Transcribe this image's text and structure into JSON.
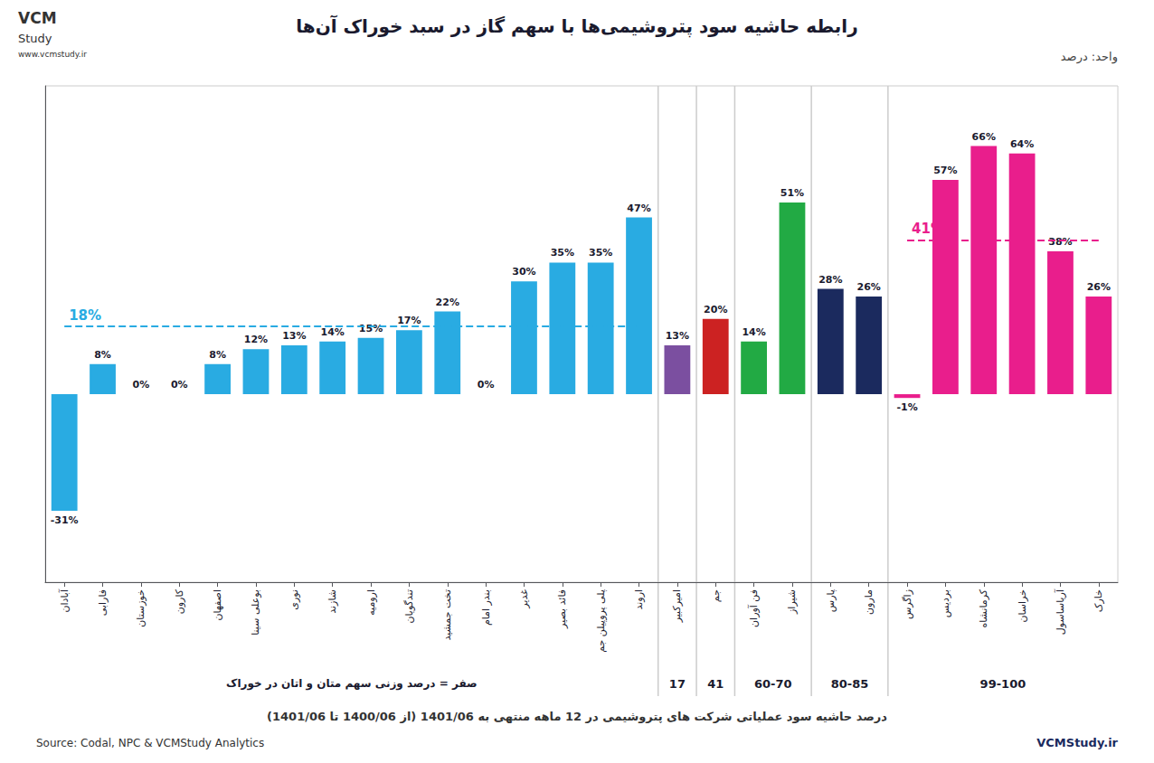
{
  "chart_data": {
    "type": "bar",
    "title": "رابطه حاشیه سود پتروشیمی‌ها با سهم گاز در سبد خوراک آن‌ها",
    "unit_label": "واحد: درصد",
    "subtitle": "درصد حاشیه سود عملیاتی شرکت های پتروشیمی در 12 ماهه منتهی به 1401/06 (از 1400/06 تا 1401/06)",
    "source": "Source: Codal, NPC & VCMStudy Analytics",
    "watermark": "VCMStudy.ir",
    "logo_text": [
      "VCM",
      "Study",
      "www.vcmstudy.ir"
    ],
    "categories": [
      "آبادان",
      "فارابی",
      "خوزستان",
      "کارون",
      "اصفهان",
      "بوعلی سینا",
      "نوری",
      "شازند",
      "ارومیه",
      "تندگویان",
      "تخت جمشید",
      "بندر امام",
      "غدیر",
      "فائد بصیر",
      "پلی پروپیلن جم",
      "اروند",
      "امیرکبیر",
      "جم",
      "فن آوران",
      "شیراز",
      "پارس",
      "مارون",
      "زاگرس",
      "بردیس",
      "کرمانشاه",
      "خراسان",
      "آریاساسول",
      "خارک"
    ],
    "values": [
      -31,
      8,
      0,
      0,
      8,
      12,
      13,
      14,
      15,
      17,
      22,
      0,
      30,
      35,
      35,
      47,
      13,
      20,
      14,
      51,
      28,
      26,
      -1,
      57,
      66,
      64,
      38,
      26
    ],
    "value_labels": [
      "-31%",
      "8%",
      "0%",
      "0%",
      "8%",
      "12%",
      "13%",
      "14%",
      "15%",
      "17%",
      "22%",
      "0%",
      "30%",
      "35%",
      "35%",
      "47%",
      "13%",
      "20%",
      "14%",
      "51%",
      "28%",
      "26%",
      "-1%",
      "57%",
      "66%",
      "64%",
      "38%",
      "26%"
    ],
    "colors": [
      "#29ABE2",
      "#29ABE2",
      "#29ABE2",
      "#29ABE2",
      "#29ABE2",
      "#29ABE2",
      "#29ABE2",
      "#29ABE2",
      "#29ABE2",
      "#29ABE2",
      "#29ABE2",
      "#29ABE2",
      "#29ABE2",
      "#29ABE2",
      "#29ABE2",
      "#29ABE2",
      "#7B4FA0",
      "#CC2222",
      "#22AA44",
      "#22AA44",
      "#1B2A5E",
      "#1B2A5E",
      "#E91E8C",
      "#E91E8C",
      "#E91E8C",
      "#E91E8C",
      "#E91E8C",
      "#E91E8C"
    ],
    "groups": [
      "صفر = درصد وزنی سهم متان و اتان در خوراک",
      "صفر = درصد وزنی سهم متان و اتان در خوراک",
      "صفر = درصد وزنی سهم متان و اتان در خوراک",
      "صفر = درصد وزنی سهم متان و اتان در خوراک",
      "صفر = درصد وزنی سهم متان و اتان در خوراک",
      "صفر = درصد وزنی سهم متان و اتان در خوراک",
      "صفر = درصد وزنی سهم متان و اتان در خوراک",
      "صفر = درصد وزنی سهم متان و اتان در خوراک",
      "صفر = درصد وزنی سهم متان و اتان در خوراک",
      "صفر = درصد وزنی سهم متان و اتان در خوراک",
      "صفر = درصد وزنی سهم متان و اتان در خوراک",
      "صفر = درصد وزنی سهم متان و اتان در خوراک",
      "صفر = درصد وزنی سهم متان و اتان در خوراک",
      "صفر = درصد وزنی سهم متان و اتان در خوراک",
      "صفر = درصد وزنی سهم متان و اتان در خوراک",
      "صفر = درصد وزنی سهم متان و اتان در خوراک",
      "17",
      "41",
      "60-70",
      "60-70",
      "80-85",
      "80-85",
      "99-100",
      "99-100",
      "99-100",
      "99-100",
      "99-100",
      "99-100"
    ],
    "reference_lines": [
      {
        "value": 18,
        "label": "18%",
        "color": "#29ABE2",
        "group": "صفر = درصد وزنی سهم متان و اتان در خوراک"
      },
      {
        "value": 41,
        "label": "41%",
        "color": "#E91E8C",
        "group": "99-100"
      }
    ],
    "ylim": [
      -50,
      82
    ],
    "grid": false,
    "tick_labels": "x",
    "data_labels": true
  }
}
